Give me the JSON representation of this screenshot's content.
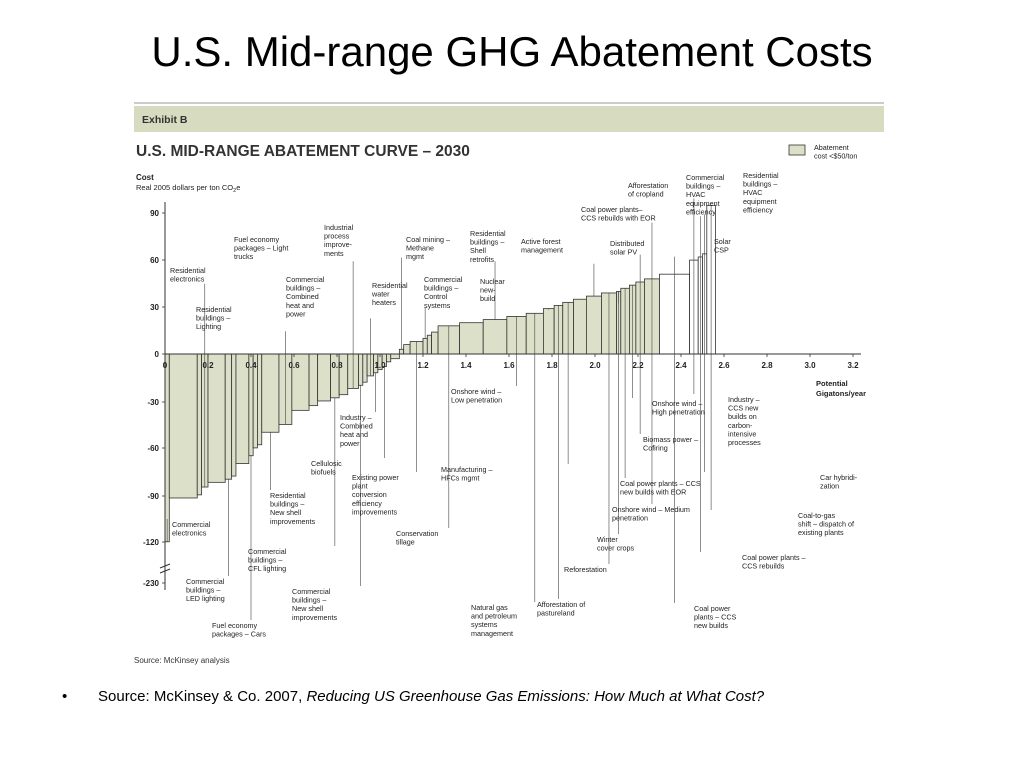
{
  "slide": {
    "title": "U.S. Mid-range GHG Abatement Costs",
    "bullet": "•",
    "source_prefix": "Source: McKinsey & Co. 2007, ",
    "source_italic": "Reducing US Greenhouse Gas Emissions: How Much at What Cost?"
  },
  "exhibit": {
    "tag": "Exhibit B",
    "title": "U.S. MID-RANGE ABATEMENT CURVE – 2030",
    "cost_label": "Cost",
    "cost_sub": "Real 2005 dollars per ton CO2e",
    "x_title_1": "Potential",
    "x_title_2": "Gigatons/year",
    "legend": "Abatement cost <$50/ton",
    "source": "Source: McKinsey analysis"
  },
  "chart_data": {
    "type": "bar",
    "title": "U.S. MID-RANGE ABATEMENT CURVE – 2030",
    "xlabel": "Potential Gigatons/year",
    "ylabel": "Cost Real 2005 dollars per ton CO2e",
    "xlim": [
      0,
      3.2
    ],
    "ylim": [
      -230,
      100
    ],
    "y_axis_break": "between -120 and -230",
    "x_ticks": [
      "0",
      "0.2",
      "0.4",
      "0.6",
      "0.8",
      "1.0",
      "1.2",
      "1.4",
      "1.6",
      "1.8",
      "2.0",
      "2.2",
      "2.4",
      "2.6",
      "2.8",
      "3.0",
      "3.2"
    ],
    "y_ticks": [
      "90",
      "60",
      "30",
      "0",
      "-30",
      "-60",
      "-90",
      "-120",
      "-230"
    ],
    "bar_widths_gt": [
      0.02,
      0.13,
      0.02,
      0.03,
      0.08,
      0.03,
      0.02,
      0.06,
      0.02,
      0.02,
      0.02,
      0.08,
      0.06,
      0.08,
      0.04,
      0.06,
      0.04,
      0.04,
      0.05,
      0.02,
      0.02,
      0.03,
      0.02,
      0.02,
      0.02,
      0.02,
      0.04,
      0.02,
      0.03,
      0.06,
      0.02,
      0.02,
      0.03,
      0.1,
      0.11,
      0.11,
      0.09,
      0.08,
      0.05,
      0.04,
      0.05,
      0.06,
      0.07,
      0.07,
      0.02,
      0.04,
      0.03,
      0.04,
      0.07,
      0.14,
      0.04,
      0.02,
      0.02,
      0.04
    ],
    "bar_costs": [
      -120,
      -92,
      -90,
      -85,
      -82,
      -80,
      -78,
      -70,
      -65,
      -60,
      -58,
      -50,
      -45,
      -36,
      -33,
      -30,
      -28,
      -26,
      -22,
      -20,
      -18,
      -14,
      -12,
      -10,
      -8,
      -5,
      -3,
      3,
      6,
      8,
      10,
      12,
      14,
      18,
      20,
      22,
      24,
      26,
      29,
      31,
      33,
      35,
      37,
      39,
      40,
      42,
      44,
      46,
      48,
      51,
      60,
      62,
      64,
      95
    ],
    "labels": [
      {
        "text": [
          "Residential",
          "electronics"
        ]
      },
      {
        "text": [
          "Residential",
          "buildings –",
          "Lighting"
        ]
      },
      {
        "text": [
          "Fuel economy",
          "packages – Light",
          "trucks"
        ]
      },
      {
        "text": [
          "Industrial",
          "process",
          "improve-",
          "ments"
        ]
      },
      {
        "text": [
          "Commercial",
          "buildings –",
          "Combined",
          "heat and",
          "power"
        ]
      },
      {
        "text": [
          "Residential",
          "water",
          "heaters"
        ]
      },
      {
        "text": [
          "Coal mining –",
          "Methane",
          "mgmt"
        ]
      },
      {
        "text": [
          "Commercial",
          "buildings –",
          "Control",
          "systems"
        ]
      },
      {
        "text": [
          "Residential",
          "buildings –",
          "Shell",
          "retrofits"
        ]
      },
      {
        "text": [
          "Nuclear",
          "new-",
          "build"
        ]
      },
      {
        "text": [
          "Active forest",
          "management"
        ]
      },
      {
        "text": [
          "Coal power plants–",
          "CCS rebuilds with EOR"
        ]
      },
      {
        "text": [
          "Distributed",
          "solar PV"
        ]
      },
      {
        "text": [
          "Afforestation",
          "of cropland"
        ]
      },
      {
        "text": [
          "Commercial",
          "buildings –",
          "HVAC",
          "equipment",
          "efficiency"
        ]
      },
      {
        "text": [
          "Residential",
          "buildings –",
          "HVAC",
          "equipment",
          "efficiency"
        ]
      },
      {
        "text": [
          "Solar",
          "CSP"
        ]
      },
      {
        "text": [
          "Onshore wind –",
          "Low penetration"
        ]
      },
      {
        "text": [
          "Industry –",
          "Combined",
          "heat and",
          "power"
        ]
      },
      {
        "text": [
          "Cellulosic",
          "biofuels"
        ]
      },
      {
        "text": [
          "Existing power",
          "plant",
          "conversion",
          "efficiency",
          "improvements"
        ]
      },
      {
        "text": [
          "Manufacturing –",
          "HFCs mgmt"
        ]
      },
      {
        "text": [
          "Onshore wind –",
          "High penetration"
        ]
      },
      {
        "text": [
          "Industry –",
          "CCS new",
          "builds on",
          "carbon-",
          "intensive",
          "processes"
        ]
      },
      {
        "text": [
          "Biomass power –",
          "Cofiring"
        ]
      },
      {
        "text": [
          "Car hybridi-",
          "zation"
        ]
      },
      {
        "text": [
          "Coal power plants – CCS",
          "new builds with EOR"
        ]
      },
      {
        "text": [
          "Commercial",
          "electronics"
        ]
      },
      {
        "text": [
          "Residential",
          "buildings –",
          "New shell",
          "improvements"
        ]
      },
      {
        "text": [
          "Onshore wind – Medium",
          "penetration"
        ]
      },
      {
        "text": [
          "Conservation",
          "tillage"
        ]
      },
      {
        "text": [
          "Winter",
          "cover crops"
        ]
      },
      {
        "text": [
          "Coal-to-gas",
          "shift – dispatch of",
          "existing plants"
        ]
      },
      {
        "text": [
          "Commercial",
          "buildings –",
          "CFL lighting"
        ]
      },
      {
        "text": [
          "Reforestation"
        ]
      },
      {
        "text": [
          "Coal power plants –",
          "CCS rebuilds"
        ]
      },
      {
        "text": [
          "Commercial",
          "buildings –",
          "LED lighting"
        ]
      },
      {
        "text": [
          "Commercial",
          "buildings –",
          "New shell",
          "improvements"
        ]
      },
      {
        "text": [
          "Afforestation of",
          "pastureland"
        ]
      },
      {
        "text": [
          "Natural gas",
          "and petroleum",
          "systems",
          "management"
        ]
      },
      {
        "text": [
          "Coal power",
          "plants – CCS",
          "new builds"
        ]
      },
      {
        "text": [
          "Fuel economy",
          "packages – Cars"
        ]
      }
    ]
  }
}
